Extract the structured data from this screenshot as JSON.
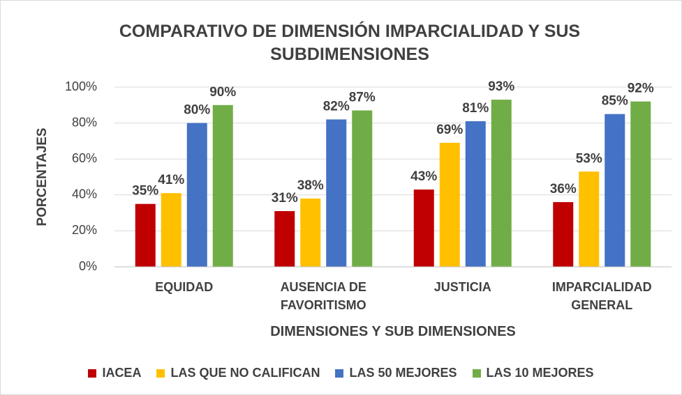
{
  "chart_data": {
    "type": "bar",
    "title": "COMPARATIVO DE DIMENSIÓN IMPARCIALIDAD Y SUS SUBDIMENSIONES",
    "y_label": "PORCENTAJES",
    "x_label": "DIMENSIONES Y SUB DIMENSIONES",
    "categories": [
      "EQUIDAD",
      "AUSENCIA DE FAVORITISMO",
      "JUSTICIA",
      "IMPARCIALIDAD GENERAL"
    ],
    "series": [
      {
        "name": "IACEA",
        "color": "#c00000",
        "values": [
          35,
          31,
          43,
          36
        ],
        "value_labels": [
          "35%",
          "31%",
          "43%",
          "36%"
        ]
      },
      {
        "name": "LAS QUE NO CALIFICAN",
        "color": "#ffc000",
        "values": [
          41,
          38,
          69,
          53
        ],
        "value_labels": [
          "41%",
          "38%",
          "69%",
          "53%"
        ]
      },
      {
        "name": "LAS 50 MEJORES",
        "color": "#4472c4",
        "values": [
          80,
          82,
          81,
          85
        ],
        "value_labels": [
          "80%",
          "82%",
          "81%",
          "85%"
        ]
      },
      {
        "name": "LAS 10 MEJORES",
        "color": "#70ad47",
        "values": [
          90,
          87,
          93,
          92
        ],
        "value_labels": [
          "90%",
          "87%",
          "93%",
          "92%"
        ]
      }
    ],
    "ylim": [
      0,
      100
    ],
    "yticks": [
      {
        "value": 0,
        "label": "0%"
      },
      {
        "value": 20,
        "label": "20%"
      },
      {
        "value": 40,
        "label": "40%"
      },
      {
        "value": 60,
        "label": "60%"
      },
      {
        "value": 80,
        "label": "80%"
      },
      {
        "value": 100,
        "label": "100%"
      }
    ],
    "grid": true,
    "legend": "bottom"
  }
}
